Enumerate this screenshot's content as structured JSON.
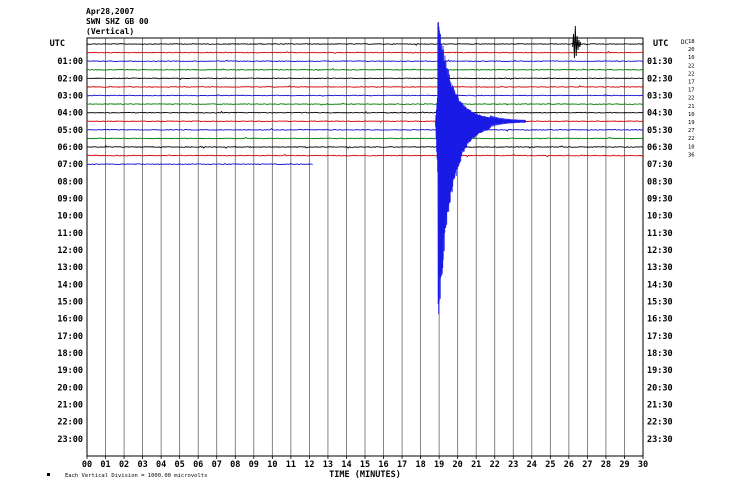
{
  "header": {
    "date": "Apr28,2007",
    "station": "SWN SHZ GB 00",
    "component": "(Vertical)"
  },
  "chart_data": {
    "type": "line",
    "title": "",
    "left_axis_label": "UTC",
    "right_axis_label": "UTC",
    "dc_label": "DC",
    "xlabel": "TIME (MINUTES)",
    "xlim": [
      0,
      30
    ],
    "x_ticks": [
      "00",
      "01",
      "02",
      "03",
      "04",
      "05",
      "06",
      "07",
      "08",
      "09",
      "10",
      "11",
      "12",
      "13",
      "14",
      "15",
      "16",
      "17",
      "18",
      "19",
      "20",
      "21",
      "22",
      "23",
      "24",
      "25",
      "26",
      "27",
      "28",
      "29",
      "30"
    ],
    "rows_left": [
      "",
      "01:00",
      "02:00",
      "03:00",
      "04:00",
      "05:00",
      "06:00",
      "07:00",
      "08:00",
      "09:00",
      "10:00",
      "11:00",
      "12:00",
      "13:00",
      "14:00",
      "15:00",
      "16:00",
      "17:00",
      "18:00",
      "19:00",
      "20:00",
      "21:00",
      "22:00",
      "23:00"
    ],
    "rows_right": [
      "UTC",
      "01:30",
      "02:30",
      "03:30",
      "04:30",
      "05:30",
      "06:30",
      "07:30",
      "08:30",
      "09:30",
      "10:30",
      "11:30",
      "12:30",
      "13:30",
      "14:30",
      "15:30",
      "16:30",
      "17:30",
      "18:30",
      "19:30",
      "20:30",
      "21:30",
      "22:30",
      "23:30"
    ],
    "dc_offsets": [
      "18",
      "20",
      "10",
      "22",
      "22",
      "17",
      "17",
      "22",
      "21",
      "10",
      "19",
      "27",
      "22",
      "10",
      "36"
    ],
    "trace_colors": [
      "#000000",
      "#d40000",
      "#1010d0",
      "#007a00"
    ],
    "traces_drawn": 15,
    "last_trace_end_min": 12.2,
    "event": {
      "start_min": 18.8,
      "peak_min": 19.0,
      "trace_index": 9,
      "color": "#1a1ae6"
    },
    "small_event": {
      "minute": 26.2,
      "trace_index": 0
    },
    "footer_note": "Each Vertical Division = 1000.00 microvolts"
  }
}
